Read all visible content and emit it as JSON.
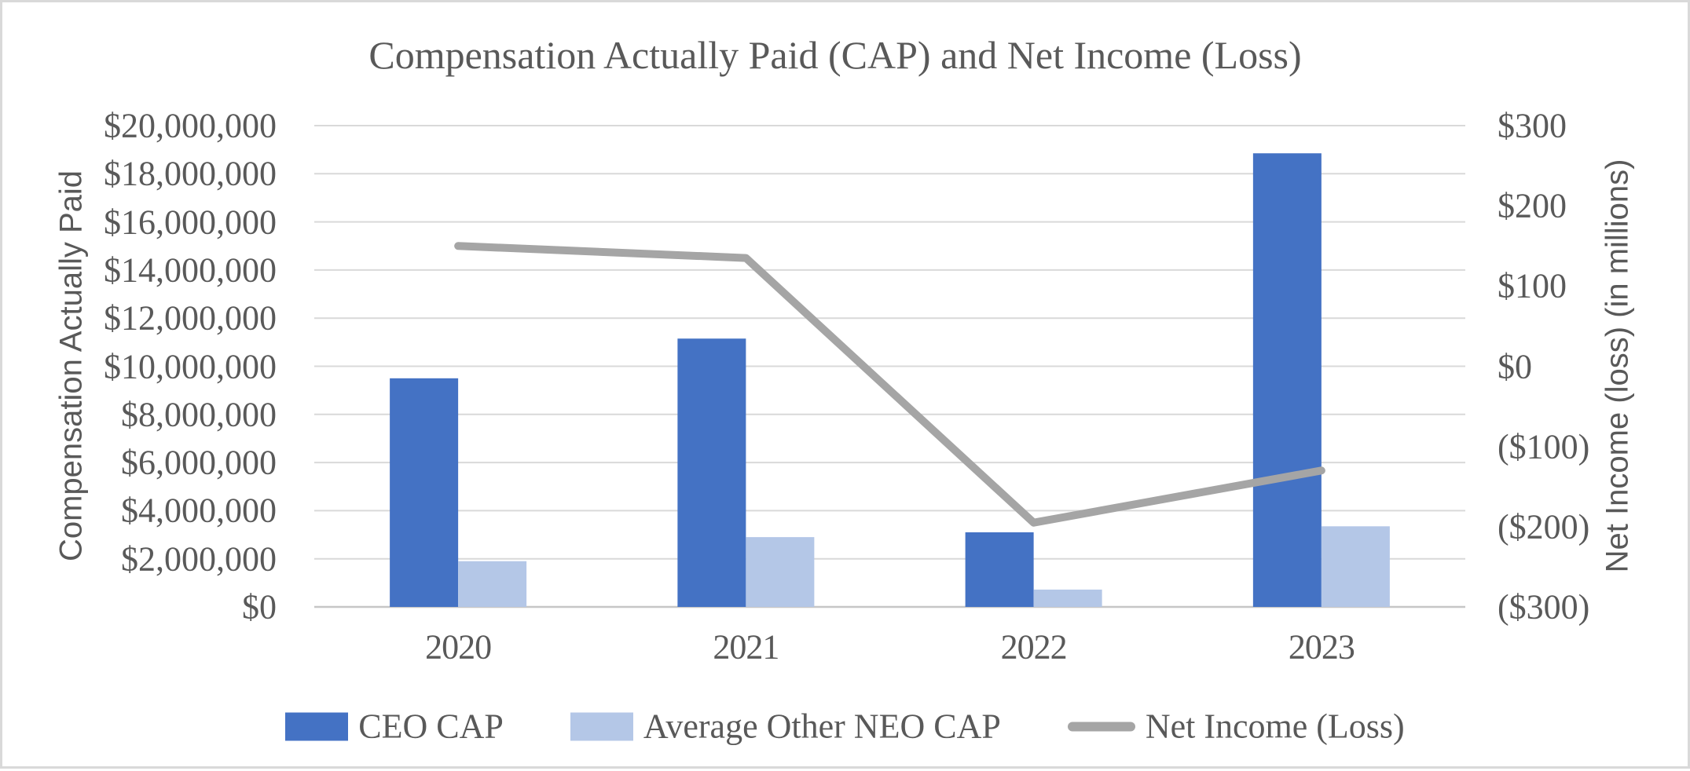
{
  "chart_data": {
    "type": "combo",
    "title": "Compensation Actually Paid (CAP) and Net Income (Loss)",
    "categories": [
      "2020",
      "2021",
      "2022",
      "2023"
    ],
    "series": [
      {
        "name": "CEO CAP",
        "type": "bar",
        "axis": "left",
        "color": "#4472C4",
        "values": [
          9500000,
          11150000,
          3100000,
          18850000
        ]
      },
      {
        "name": "Average Other NEO CAP",
        "type": "bar",
        "axis": "left",
        "color": "#B4C7E7",
        "values": [
          1900000,
          2900000,
          720000,
          3350000
        ]
      },
      {
        "name": "Net Income (Loss)",
        "type": "line",
        "axis": "right",
        "color": "#A5A5A5",
        "values": [
          150,
          135,
          -195,
          -130
        ]
      }
    ],
    "left_axis": {
      "label": "Compensation Actually Paid",
      "min": 0,
      "max": 20000000,
      "step": 2000000,
      "ticks": [
        "$20,000,000",
        "$18,000,000",
        "$16,000,000",
        "$14,000,000",
        "$12,000,000",
        "$10,000,000",
        "$8,000,000",
        "$6,000,000",
        "$4,000,000",
        "$2,000,000",
        "$0"
      ]
    },
    "right_axis": {
      "label": "Net Income (loss) (in millions)",
      "min": -300,
      "max": 300,
      "step": 100,
      "ticks": [
        "$300",
        "$200",
        "$100",
        "$0",
        "($100)",
        "($200)",
        "($300)"
      ]
    },
    "grid": true,
    "legend_position": "bottom",
    "colors": {
      "grid": "#D9D9D9",
      "axis_line": "#C6C6C6",
      "text": "#595959",
      "border": "#D9D9D9"
    }
  }
}
